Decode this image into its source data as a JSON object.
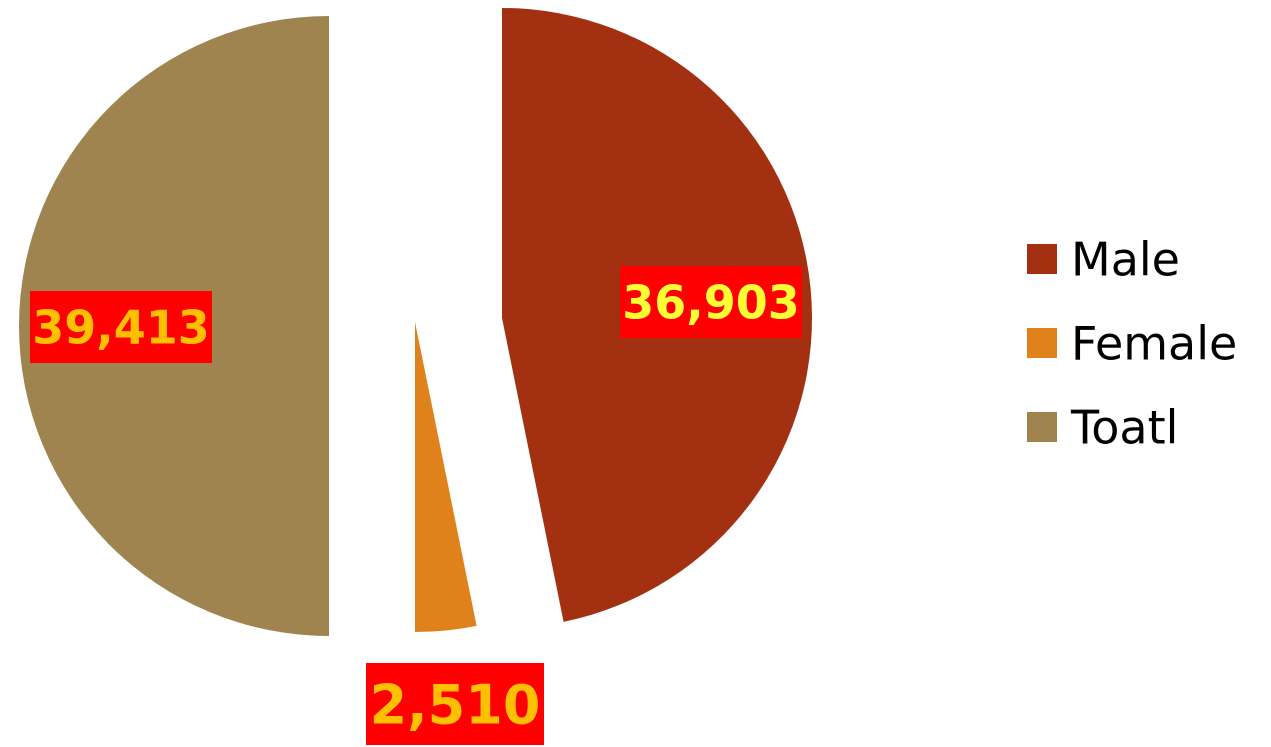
{
  "chart_data": {
    "type": "pie",
    "slices": [
      {
        "name": "Male",
        "value": 36903,
        "label": "36,903",
        "color": "#A33010",
        "label_color": "#FFFF33"
      },
      {
        "name": "Female",
        "value": 2510,
        "label": "2,510",
        "color": "#DF821C",
        "label_color": "#FFC000"
      },
      {
        "name": "Toatl",
        "value": 39413,
        "label": "39,413",
        "color": "#A0844F",
        "label_color": "#FFC000"
      }
    ],
    "legend": {
      "position": "right",
      "items": [
        "Male",
        "Female",
        "Toatl"
      ]
    },
    "data_label_background": "#FF0000",
    "exploded": true
  }
}
